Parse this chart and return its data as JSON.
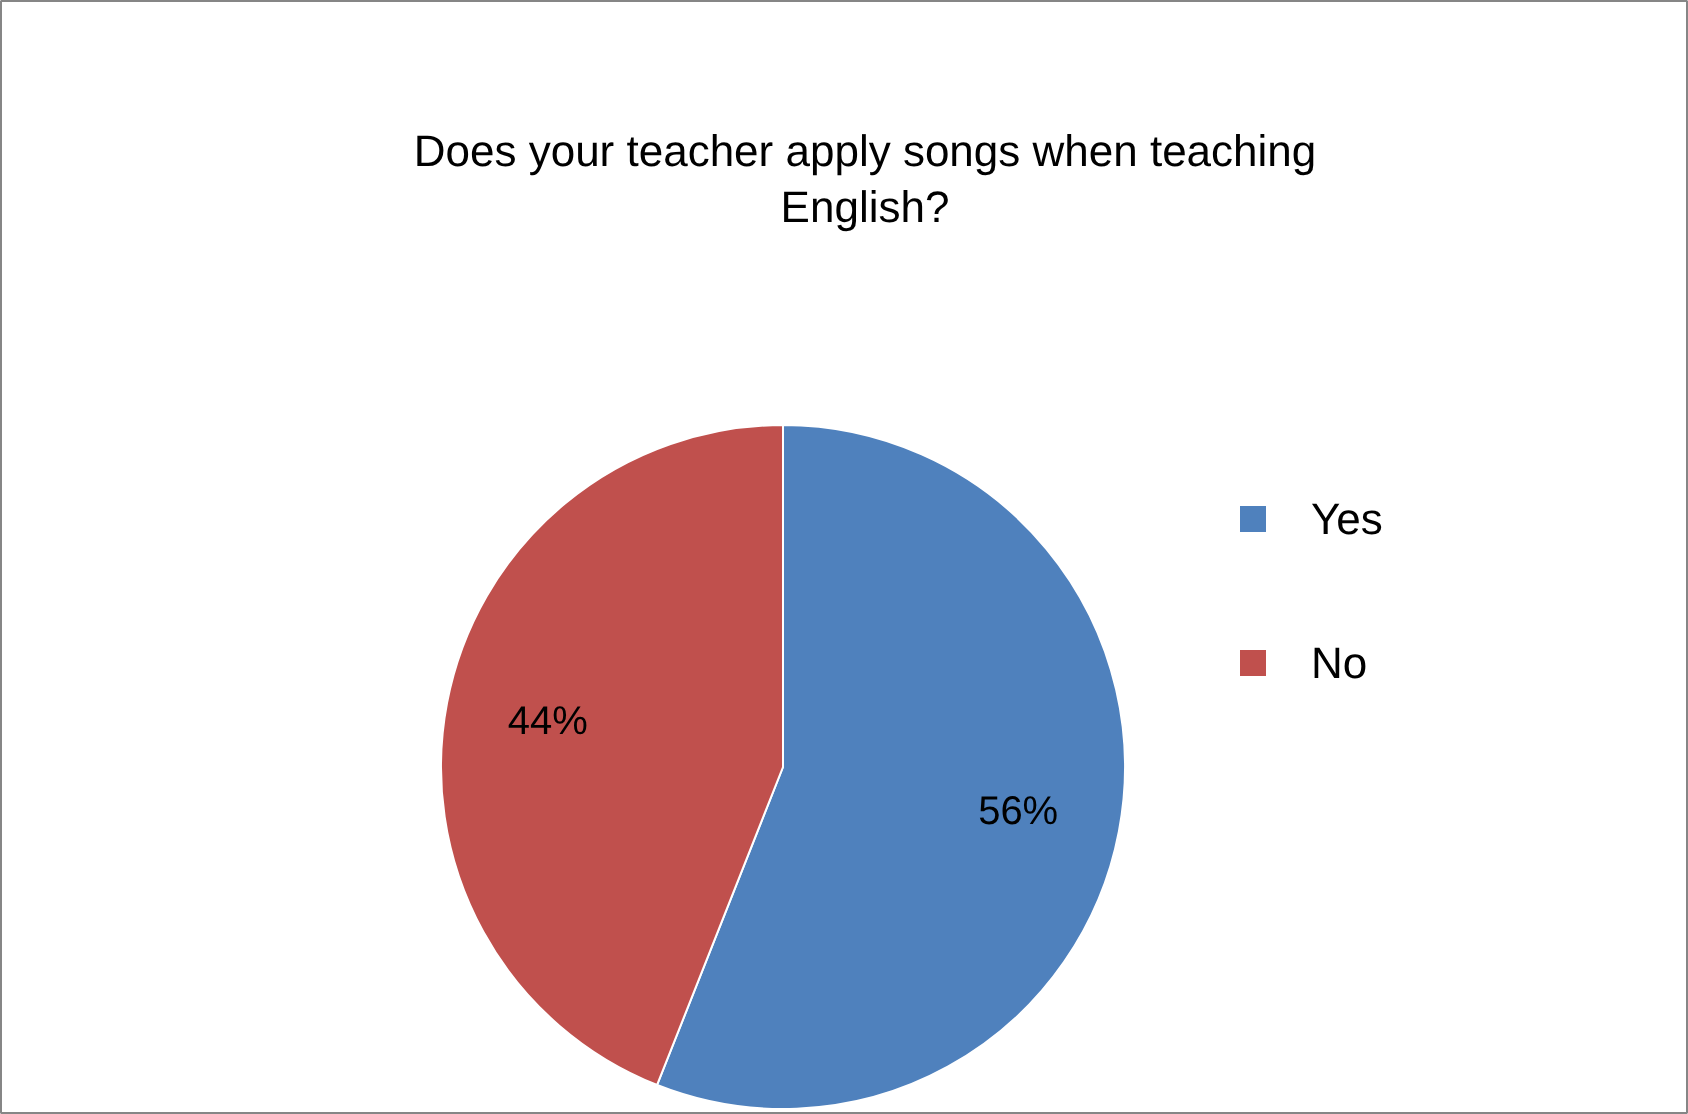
{
  "chart_data": {
    "type": "pie",
    "title": "Does your teacher apply songs when teaching English?",
    "categories": [
      "Yes",
      "No"
    ],
    "values": [
      56,
      44
    ],
    "colors": [
      "#4f81bd",
      "#c0504d"
    ],
    "value_labels": [
      "56%",
      "44%"
    ],
    "legend": "right"
  }
}
